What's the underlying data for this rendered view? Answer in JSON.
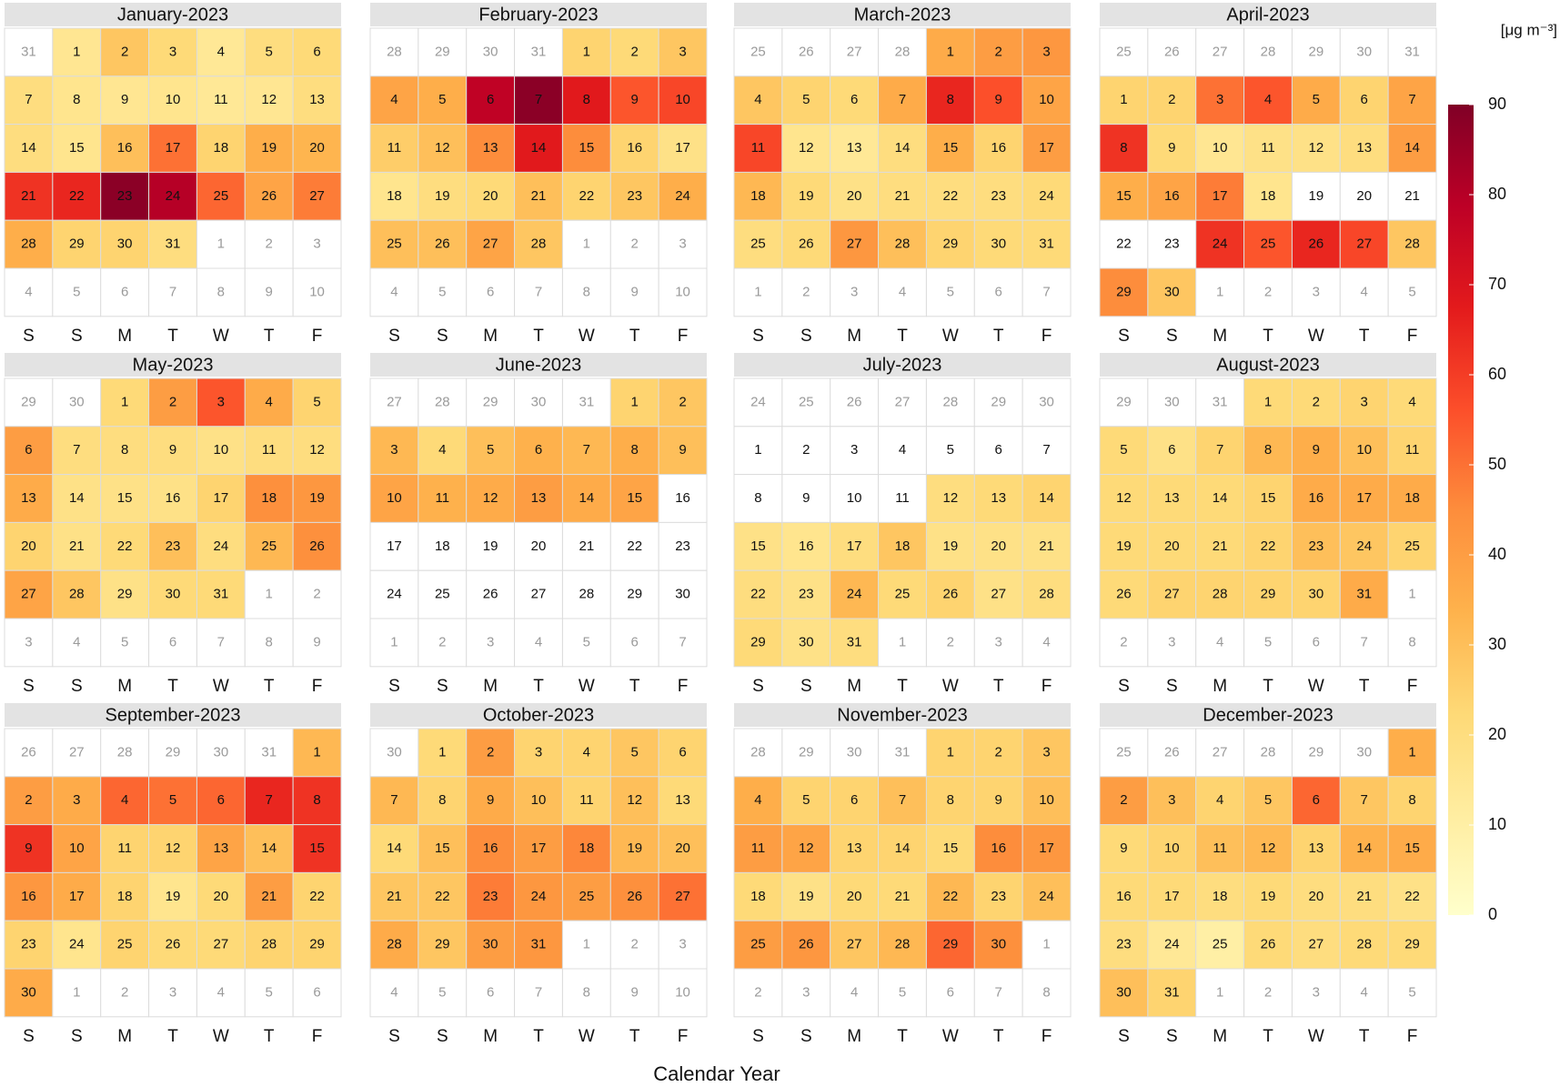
{
  "chart_data": {
    "type": "calendar",
    "xlabel": "Calendar Year",
    "colorbar_label": "[μg m⁻³]",
    "weekdays": [
      "S",
      "S",
      "M",
      "T",
      "W",
      "T",
      "F"
    ],
    "zlim": [
      0,
      90
    ],
    "zticks": [
      0,
      10,
      20,
      30,
      40,
      50,
      60,
      70,
      80,
      90
    ],
    "colors": [
      "#FFFFCC",
      "#FFEDA0",
      "#FED976",
      "#FEB24C",
      "#FD8D3C",
      "#FC4E2A",
      "#E31A1C",
      "#BD0026",
      "#800026"
    ],
    "months": [
      {
        "title": "January-2023",
        "before": [
          31
        ],
        "days": [
          1,
          2,
          3,
          4,
          5,
          6,
          7,
          8,
          9,
          10,
          11,
          12,
          13,
          14,
          15,
          16,
          17,
          18,
          19,
          20,
          21,
          22,
          23,
          24,
          25,
          26,
          27,
          28,
          29,
          30,
          31
        ],
        "after": [
          1,
          2,
          3,
          4,
          5,
          6,
          7,
          8,
          9,
          10
        ],
        "values": [
          15,
          28,
          22,
          14,
          20,
          22,
          20,
          16,
          15,
          16,
          14,
          15,
          20,
          20,
          16,
          30,
          50,
          24,
          35,
          33,
          62,
          65,
          88,
          80,
          52,
          38,
          48,
          35,
          24,
          24,
          20
        ]
      },
      {
        "title": "February-2023",
        "before": [
          28,
          29,
          30,
          31
        ],
        "days": [
          1,
          2,
          3,
          4,
          5,
          6,
          7,
          8,
          9,
          10,
          11,
          12,
          13,
          14,
          15,
          16,
          17,
          18,
          19,
          20,
          21,
          22,
          23,
          24,
          25,
          26,
          27,
          28
        ],
        "after": [
          1,
          2,
          3,
          4,
          5,
          6,
          7,
          8,
          9,
          10
        ],
        "values": [
          24,
          22,
          28,
          38,
          35,
          78,
          88,
          68,
          55,
          58,
          26,
          30,
          45,
          68,
          45,
          24,
          18,
          16,
          20,
          22,
          30,
          24,
          28,
          35,
          30,
          30,
          38,
          28
        ]
      },
      {
        "title": "March-2023",
        "before": [
          25,
          26,
          27,
          28
        ],
        "days": [
          1,
          2,
          3,
          4,
          5,
          6,
          7,
          8,
          9,
          10,
          11,
          12,
          13,
          14,
          15,
          16,
          17,
          18,
          19,
          20,
          21,
          22,
          23,
          24,
          25,
          26,
          27,
          28,
          29,
          30,
          31
        ],
        "after": [
          1,
          2,
          3,
          4,
          5,
          6,
          7
        ],
        "values": [
          36,
          40,
          42,
          28,
          24,
          22,
          36,
          65,
          56,
          38,
          58,
          16,
          14,
          20,
          35,
          24,
          40,
          32,
          22,
          18,
          20,
          20,
          20,
          22,
          20,
          22,
          42,
          30,
          24,
          22,
          22
        ]
      },
      {
        "title": "April-2023",
        "before": [
          25,
          26,
          27,
          28,
          29,
          30,
          31
        ],
        "days": [
          1,
          2,
          3,
          4,
          5,
          6,
          7,
          8,
          9,
          10,
          11,
          12,
          13,
          14,
          15,
          16,
          17,
          18,
          19,
          20,
          21,
          22,
          23,
          24,
          25,
          26,
          27,
          28,
          29,
          30
        ],
        "after": [
          1,
          2,
          3,
          4,
          5
        ],
        "values": [
          24,
          24,
          50,
          55,
          36,
          24,
          38,
          62,
          22,
          15,
          18,
          18,
          20,
          40,
          35,
          38,
          48,
          16,
          null,
          null,
          null,
          null,
          null,
          62,
          55,
          65,
          58,
          28,
          45,
          28
        ]
      },
      {
        "title": "May-2023",
        "before": [
          29,
          30
        ],
        "days": [
          1,
          2,
          3,
          4,
          5,
          6,
          7,
          8,
          9,
          10,
          11,
          12,
          13,
          14,
          15,
          16,
          17,
          18,
          19,
          20,
          21,
          22,
          23,
          24,
          25,
          26,
          27,
          28,
          29,
          30,
          31
        ],
        "after": [
          1,
          2,
          3,
          4,
          5,
          6,
          7,
          8,
          9
        ],
        "values": [
          22,
          40,
          55,
          36,
          24,
          40,
          20,
          20,
          20,
          18,
          20,
          20,
          36,
          18,
          18,
          18,
          24,
          44,
          42,
          24,
          18,
          22,
          30,
          20,
          32,
          44,
          38,
          28,
          18,
          22,
          22
        ]
      },
      {
        "title": "June-2023",
        "before": [
          27,
          28,
          29,
          30,
          31
        ],
        "days": [
          1,
          2,
          3,
          4,
          5,
          6,
          7,
          8,
          9,
          10,
          11,
          12,
          13,
          14,
          15,
          16,
          17,
          18,
          19,
          20,
          21,
          22,
          23,
          24,
          25,
          26,
          27,
          28,
          29,
          30
        ],
        "after": [
          1,
          2,
          3,
          4,
          5,
          6,
          7
        ],
        "values": [
          24,
          28,
          32,
          22,
          30,
          34,
          32,
          35,
          30,
          38,
          34,
          36,
          40,
          36,
          38,
          null,
          null,
          null,
          null,
          null,
          null,
          null,
          null,
          null,
          null,
          null,
          null,
          null,
          null,
          null
        ]
      },
      {
        "title": "July-2023",
        "before": [
          24,
          25,
          26,
          27,
          28,
          29,
          30
        ],
        "days": [
          1,
          2,
          3,
          4,
          5,
          6,
          7,
          8,
          9,
          10,
          11,
          12,
          13,
          14,
          15,
          16,
          17,
          18,
          19,
          20,
          21,
          22,
          23,
          24,
          25,
          26,
          27,
          28,
          29,
          30,
          31
        ],
        "after": [
          1,
          2,
          3,
          4
        ],
        "values": [
          null,
          null,
          null,
          null,
          null,
          null,
          null,
          null,
          null,
          null,
          null,
          20,
          22,
          24,
          18,
          16,
          20,
          28,
          18,
          18,
          18,
          20,
          18,
          32,
          22,
          24,
          18,
          20,
          22,
          18,
          20
        ]
      },
      {
        "title": "August-2023",
        "before": [
          29,
          30,
          31
        ],
        "days": [
          1,
          2,
          3,
          4,
          5,
          6,
          7,
          8,
          9,
          10,
          11,
          12,
          13,
          14,
          15,
          16,
          17,
          18,
          19,
          20,
          21,
          22,
          23,
          24,
          25,
          26,
          27,
          28,
          29,
          30,
          31
        ],
        "after": [
          1,
          2,
          3,
          4,
          5,
          6,
          7,
          8
        ],
        "values": [
          22,
          22,
          24,
          22,
          22,
          18,
          24,
          32,
          35,
          30,
          24,
          22,
          22,
          22,
          24,
          36,
          36,
          36,
          22,
          22,
          22,
          24,
          30,
          28,
          24,
          22,
          24,
          24,
          24,
          24,
          36
        ]
      },
      {
        "title": "September-2023",
        "before": [
          26,
          27,
          28,
          29,
          30,
          31
        ],
        "days": [
          1,
          2,
          3,
          4,
          5,
          6,
          7,
          8,
          9,
          10,
          11,
          12,
          13,
          14,
          15,
          16,
          17,
          18,
          19,
          20,
          21,
          22,
          23,
          24,
          25,
          26,
          27,
          28,
          29,
          30
        ],
        "after": [
          1,
          2,
          3,
          4,
          5,
          6
        ],
        "values": [
          32,
          40,
          36,
          52,
          50,
          52,
          65,
          62,
          62,
          38,
          24,
          24,
          38,
          30,
          62,
          42,
          36,
          24,
          16,
          22,
          40,
          24,
          24,
          16,
          24,
          22,
          22,
          24,
          24,
          36
        ]
      },
      {
        "title": "October-2023",
        "before": [
          30
        ],
        "days": [
          1,
          2,
          3,
          4,
          5,
          6,
          7,
          8,
          9,
          10,
          11,
          12,
          13,
          14,
          15,
          16,
          17,
          18,
          19,
          20,
          21,
          22,
          23,
          24,
          25,
          26,
          27,
          28,
          29,
          30,
          31
        ],
        "after": [
          1,
          2,
          3,
          4,
          5,
          6,
          7,
          8,
          9,
          10
        ],
        "values": [
          22,
          40,
          24,
          24,
          28,
          24,
          32,
          24,
          36,
          30,
          24,
          30,
          22,
          22,
          30,
          45,
          40,
          46,
          32,
          30,
          28,
          28,
          48,
          42,
          40,
          44,
          50,
          36,
          28,
          40,
          42
        ]
      },
      {
        "title": "November-2023",
        "before": [
          28,
          29,
          30,
          31
        ],
        "days": [
          1,
          2,
          3,
          4,
          5,
          6,
          7,
          8,
          9,
          10,
          11,
          12,
          13,
          14,
          15,
          16,
          17,
          18,
          19,
          20,
          21,
          22,
          23,
          24,
          25,
          26,
          27,
          28,
          29,
          30
        ],
        "after": [
          1,
          2,
          3,
          4,
          5,
          6,
          7,
          8
        ],
        "values": [
          24,
          24,
          28,
          35,
          24,
          24,
          30,
          24,
          24,
          30,
          40,
          38,
          24,
          24,
          22,
          45,
          42,
          22,
          18,
          22,
          22,
          32,
          24,
          30,
          40,
          42,
          28,
          32,
          52,
          44
        ]
      },
      {
        "title": "December-2023",
        "before": [
          25,
          26,
          27,
          28,
          29,
          30
        ],
        "days": [
          1,
          2,
          3,
          4,
          5,
          6,
          7,
          8,
          9,
          10,
          11,
          12,
          13,
          14,
          15,
          16,
          17,
          18,
          19,
          20,
          21,
          22,
          23,
          24,
          25,
          26,
          27,
          28,
          29,
          30,
          31
        ],
        "after": [
          1,
          2,
          3,
          4,
          5
        ],
        "values": [
          35,
          40,
          30,
          24,
          28,
          52,
          28,
          24,
          22,
          24,
          30,
          32,
          24,
          34,
          36,
          22,
          22,
          20,
          22,
          20,
          20,
          18,
          20,
          14,
          10,
          22,
          20,
          22,
          22,
          30,
          24
        ]
      }
    ]
  }
}
